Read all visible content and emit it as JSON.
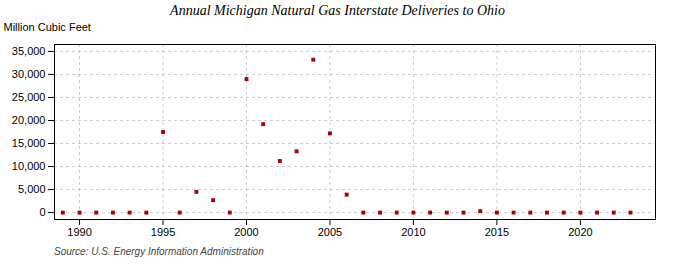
{
  "chart_data": {
    "type": "scatter",
    "title": "Annual Michigan Natural Gas Interstate Deliveries to Ohio",
    "ylabel": "Million Cubic Feet",
    "source": "Source: U.S. Energy Information Administration",
    "x": [
      1989,
      1990,
      1991,
      1992,
      1993,
      1994,
      1995,
      1996,
      1997,
      1998,
      1999,
      2000,
      2001,
      2002,
      2003,
      2004,
      2005,
      2006,
      2007,
      2008,
      2009,
      2010,
      2011,
      2012,
      2013,
      2014,
      2015,
      2016,
      2017,
      2018,
      2019,
      2020,
      2021,
      2022,
      2023
    ],
    "values": [
      0,
      0,
      0,
      0,
      0,
      0,
      17500,
      0,
      4500,
      2700,
      0,
      29000,
      19200,
      11200,
      13300,
      33200,
      17200,
      3900,
      0,
      0,
      0,
      0,
      0,
      0,
      0,
      300,
      0,
      0,
      0,
      0,
      0,
      0,
      0,
      0,
      0
    ],
    "color": "#aa0000",
    "marker": "square",
    "xlim": [
      1988.5,
      2024.5
    ],
    "xticks": [
      1990,
      1995,
      2000,
      2005,
      2010,
      2015,
      2020
    ],
    "ylim": [
      -1500,
      36500
    ],
    "yticks": [
      0,
      {
        "value": 5000,
        "label": "5,000"
      },
      {
        "value": 10000,
        "label": "10,000"
      },
      {
        "value": 15000,
        "label": "15,000"
      },
      {
        "value": 20000,
        "label": "20,000"
      },
      {
        "value": 25000,
        "label": "25,000"
      },
      {
        "value": 30000,
        "label": "30,000"
      },
      {
        "value": 35000,
        "label": "35,000"
      }
    ],
    "grid": true
  }
}
